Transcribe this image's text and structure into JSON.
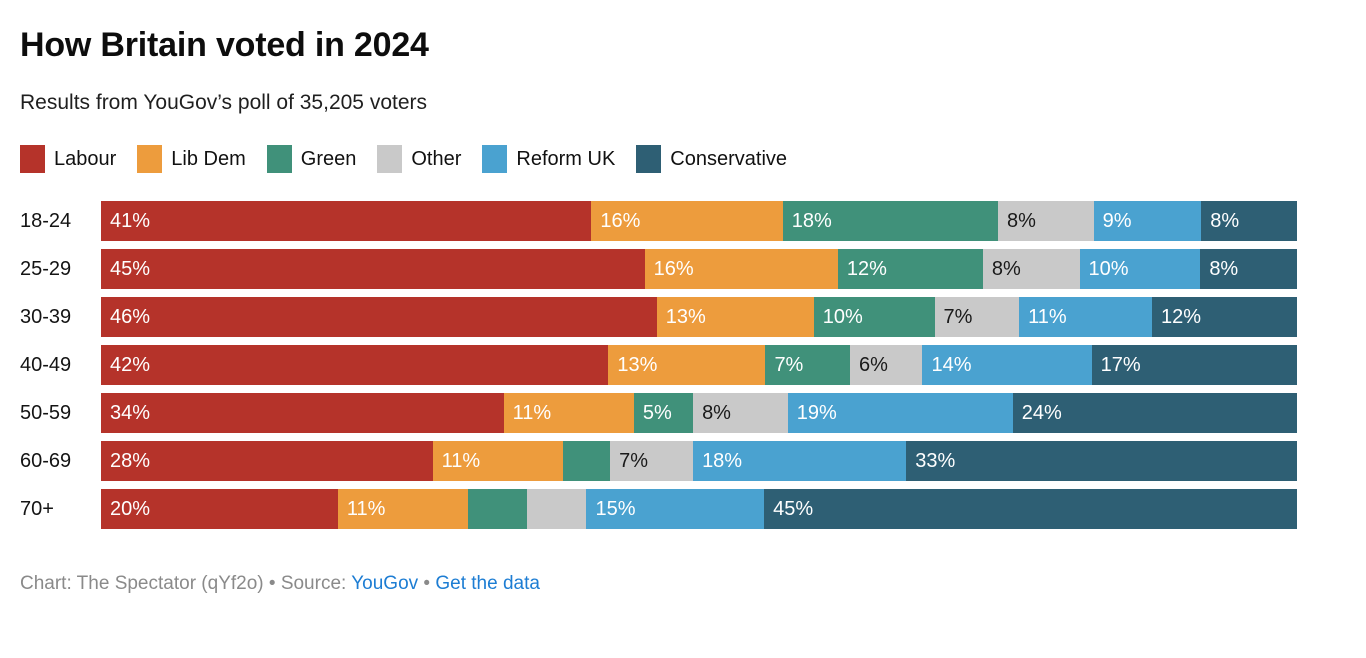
{
  "header": {
    "title": "How Britain voted in 2024",
    "subtitle": "Results from YouGov’s poll of 35,205 voters"
  },
  "chart_data": {
    "type": "bar",
    "stacked": true,
    "orientation": "horizontal",
    "legend_position": "top",
    "axes_visible": false,
    "label_suffix": "%",
    "categories": [
      "18-24",
      "25-29",
      "30-39",
      "40-49",
      "50-59",
      "60-69",
      "70+"
    ],
    "series": [
      {
        "name": "Labour",
        "color": "#b5332a",
        "label_color": "#ffffff",
        "values": [
          41,
          45,
          46,
          42,
          34,
          28,
          20
        ]
      },
      {
        "name": "Lib Dem",
        "color": "#ed9c3d",
        "label_color": "#ffffff",
        "values": [
          16,
          16,
          13,
          13,
          11,
          11,
          11
        ]
      },
      {
        "name": "Green",
        "color": "#40917a",
        "label_color": "#ffffff",
        "values": [
          18,
          12,
          10,
          7,
          5,
          4,
          5
        ]
      },
      {
        "name": "Other",
        "color": "#c9c9c9",
        "label_color": "#1a1a1a",
        "values": [
          8,
          8,
          7,
          6,
          8,
          7,
          5
        ]
      },
      {
        "name": "Reform UK",
        "color": "#4aa2d0",
        "label_color": "#ffffff",
        "values": [
          9,
          10,
          11,
          14,
          19,
          18,
          15
        ]
      },
      {
        "name": "Conservative",
        "color": "#2e5f74",
        "label_color": "#ffffff",
        "values": [
          8,
          8,
          12,
          17,
          24,
          33,
          45
        ]
      }
    ],
    "unlabeled_segments": [
      {
        "row": 5,
        "series": 2
      },
      {
        "row": 6,
        "series": 2
      },
      {
        "row": 6,
        "series": 3
      }
    ]
  },
  "footer": {
    "prefix": "Chart: The Spectator (qYf2o) • Source: ",
    "source_link": "YouGov",
    "separator": " • ",
    "data_link": "Get the data",
    "text_color": "#8a8a8a",
    "link_color": "#1d7dd3"
  }
}
